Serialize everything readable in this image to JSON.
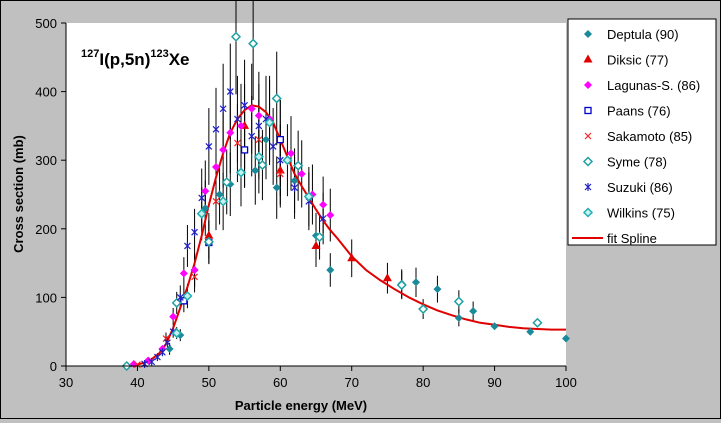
{
  "chart_data": {
    "type": "scatter",
    "title_parts": {
      "sup1": "127",
      "base1": "I(p,5n)",
      "sup2": "123",
      "base2": "Xe"
    },
    "xlabel": "Particle energy (MeV)",
    "ylabel": "Cross section (mb)",
    "xlim": [
      30,
      100
    ],
    "ylim": [
      0,
      500
    ],
    "x_ticks": [
      30,
      40,
      50,
      60,
      70,
      80,
      90,
      100
    ],
    "y_ticks": [
      0,
      100,
      200,
      300,
      400,
      500
    ],
    "grid": false,
    "legend_position": "right",
    "series": [
      {
        "name": "Deptula (90)",
        "marker": "diamond",
        "color": "#1a8a9a",
        "points": [
          [
            44.5,
            25
          ],
          [
            46,
            45
          ],
          [
            48,
            140
          ],
          [
            49.5,
            230
          ],
          [
            51.5,
            250
          ],
          [
            53,
            265
          ],
          [
            55,
            315
          ],
          [
            56.5,
            285
          ],
          [
            58,
            330
          ],
          [
            59.5,
            260
          ],
          [
            62,
            270
          ],
          [
            65,
            190
          ],
          [
            67,
            140
          ],
          [
            77,
            120
          ],
          [
            79,
            122
          ],
          [
            82,
            112
          ],
          [
            85,
            70
          ],
          [
            87,
            80
          ],
          [
            90,
            58
          ],
          [
            95,
            50
          ],
          [
            100,
            40
          ]
        ]
      },
      {
        "name": "Diksic (77)",
        "marker": "triangle",
        "color": "#e00000",
        "points": [
          [
            50,
            190
          ],
          [
            55,
            350
          ],
          [
            60,
            285
          ],
          [
            65,
            175
          ],
          [
            70,
            157
          ],
          [
            75,
            128
          ]
        ]
      },
      {
        "name": "Lagunas-S. (86)",
        "marker": "diamond",
        "color": "#ff00ff",
        "points": [
          [
            39.5,
            3
          ],
          [
            41.5,
            8
          ],
          [
            43.5,
            25
          ],
          [
            45,
            72
          ],
          [
            46.5,
            135
          ],
          [
            48,
            140
          ],
          [
            49.5,
            255
          ],
          [
            51,
            290
          ],
          [
            52,
            315
          ],
          [
            53,
            340
          ],
          [
            54.5,
            350
          ],
          [
            56,
            375
          ],
          [
            57,
            365
          ],
          [
            58.5,
            360
          ],
          [
            60,
            330
          ],
          [
            61.5,
            310
          ],
          [
            63,
            280
          ],
          [
            64.5,
            250
          ],
          [
            66,
            235
          ],
          [
            67,
            220
          ]
        ]
      },
      {
        "name": "Paans (76)",
        "marker": "square",
        "color": "#0000cc",
        "points": [
          [
            46.5,
            95
          ],
          [
            50,
            180
          ],
          [
            55,
            315
          ],
          [
            60,
            330
          ]
        ]
      },
      {
        "name": "Sakamoto (85)",
        "marker": "x",
        "color": "#ff2020",
        "points": [
          [
            40,
            2
          ],
          [
            44,
            40
          ],
          [
            48,
            130
          ],
          [
            51,
            240
          ],
          [
            54,
            325
          ],
          [
            57,
            330
          ],
          [
            60,
            280
          ]
        ]
      },
      {
        "name": "Syme (78)",
        "marker": "diamond-open",
        "color": "#20a0a0",
        "points": [
          [
            38.5,
            0
          ],
          [
            45.5,
            92
          ],
          [
            50,
            181
          ],
          [
            52.5,
            268
          ],
          [
            53.8,
            480
          ],
          [
            56.2,
            470
          ],
          [
            57.5,
            293
          ],
          [
            59.5,
            390
          ],
          [
            62.5,
            292
          ],
          [
            65.5,
            188
          ],
          [
            77,
            118
          ],
          [
            80,
            83
          ],
          [
            85,
            94
          ],
          [
            96,
            63
          ]
        ]
      },
      {
        "name": "Suzuki (86)",
        "marker": "star",
        "color": "#2020c0",
        "points": [
          [
            41,
            3
          ],
          [
            42,
            6
          ],
          [
            42.8,
            13
          ],
          [
            43.5,
            20
          ],
          [
            44.2,
            34
          ],
          [
            45,
            50
          ],
          [
            46,
            100
          ],
          [
            47,
            175
          ],
          [
            48,
            195
          ],
          [
            49,
            245
          ],
          [
            50,
            320
          ],
          [
            51,
            345
          ],
          [
            52,
            375
          ],
          [
            53,
            400
          ],
          [
            54,
            360
          ],
          [
            55,
            380
          ],
          [
            56,
            335
          ],
          [
            57,
            350
          ],
          [
            58,
            360
          ],
          [
            59,
            320
          ],
          [
            60,
            300
          ],
          [
            62,
            260
          ],
          [
            64,
            240
          ],
          [
            66,
            215
          ]
        ]
      },
      {
        "name": "Wilkins (75)",
        "marker": "diamond-dot",
        "color": "#20b0b0",
        "points": [
          [
            45.5,
            48
          ],
          [
            47,
            102
          ],
          [
            49,
            222
          ],
          [
            52,
            240
          ],
          [
            54.5,
            282
          ],
          [
            57,
            305
          ],
          [
            58.5,
            355
          ],
          [
            61,
            300
          ],
          [
            64,
            247
          ]
        ]
      }
    ],
    "fit": {
      "name": "fit Spline",
      "color": "#e00000",
      "x": [
        38,
        39,
        40,
        41,
        42,
        43,
        44,
        45,
        46,
        47,
        48,
        49,
        50,
        51,
        52,
        53,
        54,
        55,
        56,
        57,
        58,
        59,
        60,
        61,
        62,
        63,
        64,
        65,
        66,
        67,
        68,
        70,
        72,
        74,
        76,
        78,
        80,
        82,
        84,
        86,
        88,
        90,
        92,
        94,
        96,
        98,
        100
      ],
      "y": [
        0,
        0,
        2,
        5,
        10,
        18,
        32,
        55,
        85,
        115,
        150,
        190,
        235,
        275,
        310,
        340,
        360,
        373,
        380,
        378,
        370,
        355,
        330,
        305,
        280,
        262,
        245,
        228,
        212,
        198,
        186,
        160,
        140,
        125,
        112,
        100,
        90,
        81,
        74,
        68,
        63,
        60,
        57,
        55,
        54,
        53,
        53
      ]
    }
  }
}
